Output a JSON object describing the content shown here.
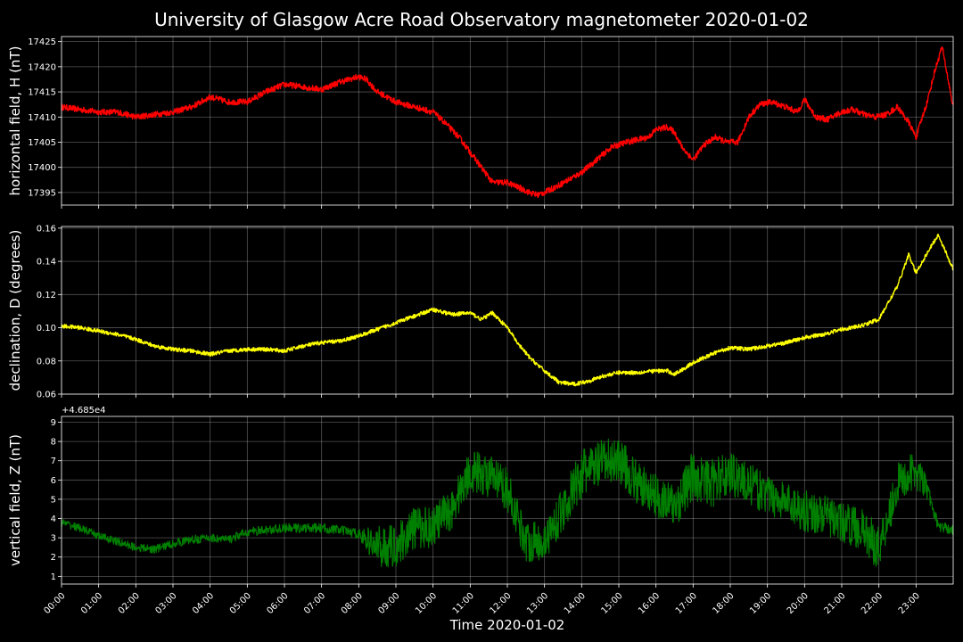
{
  "figure": {
    "title": "University of Glasgow Acre Road Observatory magnetometer 2020-01-02",
    "background": "#000000",
    "text_color": "#ffffff",
    "grid_color": "#ffffff"
  },
  "chart_data": [
    {
      "type": "line",
      "ylabel": "horizontal field, H (nT)",
      "xlabel": "",
      "color": "#ff0000",
      "ylim": [
        17392.5,
        17426
      ],
      "yticks": [
        17395,
        17400,
        17405,
        17410,
        17415,
        17420,
        17425
      ],
      "ytick_labels": [
        "17395",
        "17400",
        "17405",
        "17410",
        "17415",
        "17420",
        "17425"
      ],
      "offset_text": "",
      "noise": 0.6,
      "grid": true,
      "x": [
        0,
        0.5,
        1,
        1.5,
        2,
        2.5,
        3,
        3.5,
        4,
        4.5,
        5,
        5.5,
        6,
        6.5,
        7,
        7.5,
        8,
        8.2,
        8.5,
        9,
        9.5,
        10,
        10.3,
        10.7,
        11,
        11.3,
        11.6,
        12,
        12.3,
        12.6,
        12.8,
        13,
        13.4,
        14,
        14.4,
        14.8,
        15.2,
        15.5,
        15.8,
        16,
        16.3,
        16.5,
        16.7,
        17,
        17.3,
        17.6,
        17.9,
        18.2,
        18.5,
        18.8,
        19.1,
        19.5,
        19.8,
        20,
        20.3,
        20.6,
        21,
        21.3,
        21.6,
        21.9,
        22.2,
        22.5,
        22.8,
        23,
        23.3,
        23.5,
        23.7,
        24
      ],
      "y": [
        17412,
        17411.5,
        17411,
        17411,
        17410,
        17410.5,
        17411,
        17412,
        17414,
        17413,
        17413,
        17415,
        17416.5,
        17416,
        17415.5,
        17417,
        17418,
        17417.5,
        17415,
        17413,
        17412,
        17411,
        17409,
        17406,
        17403,
        17400,
        17397,
        17397,
        17396,
        17395,
        17394.5,
        17395,
        17396.5,
        17399,
        17401.5,
        17404,
        17405,
        17405.5,
        17406,
        17407.5,
        17408,
        17407,
        17404,
        17401.5,
        17404.5,
        17406,
        17405,
        17405,
        17410,
        17412.5,
        17413,
        17412,
        17411,
        17413.5,
        17410,
        17409.5,
        17411,
        17411.5,
        17410.5,
        17410,
        17410.5,
        17412,
        17409,
        17406,
        17413,
        17419,
        17424,
        17412
      ]
    },
    {
      "type": "line",
      "ylabel": "declination, D (degrees)",
      "xlabel": "",
      "color": "#ffff00",
      "ylim": [
        0.06,
        0.161
      ],
      "yticks": [
        0.06,
        0.08,
        0.1,
        0.12,
        0.14,
        0.16
      ],
      "ytick_labels": [
        "0.06",
        "0.08",
        "0.10",
        "0.12",
        "0.14",
        "0.16"
      ],
      "offset_text": "",
      "noise": 0.0012,
      "grid": true,
      "x": [
        0,
        0.5,
        1,
        1.5,
        2,
        2.5,
        3,
        3.5,
        4,
        4.5,
        5,
        5.5,
        6,
        6.5,
        7,
        7.5,
        8,
        8.5,
        9,
        9.5,
        10,
        10.5,
        11,
        11.3,
        11.6,
        12,
        12.3,
        12.6,
        13,
        13.4,
        13.8,
        14.2,
        14.6,
        15,
        15.5,
        16,
        16.3,
        16.5,
        16.8,
        17,
        17.3,
        17.6,
        18,
        18.5,
        19,
        19.5,
        20,
        20.5,
        21,
        21.5,
        22,
        22.2,
        22.5,
        22.8,
        23,
        23.3,
        23.6,
        24
      ],
      "y": [
        0.101,
        0.1,
        0.098,
        0.096,
        0.093,
        0.089,
        0.087,
        0.086,
        0.084,
        0.086,
        0.087,
        0.087,
        0.086,
        0.089,
        0.091,
        0.092,
        0.095,
        0.099,
        0.103,
        0.107,
        0.111,
        0.108,
        0.109,
        0.105,
        0.109,
        0.1,
        0.09,
        0.082,
        0.074,
        0.067,
        0.066,
        0.068,
        0.071,
        0.073,
        0.073,
        0.074,
        0.074,
        0.072,
        0.076,
        0.079,
        0.082,
        0.085,
        0.088,
        0.087,
        0.089,
        0.091,
        0.094,
        0.096,
        0.099,
        0.101,
        0.105,
        0.113,
        0.125,
        0.144,
        0.133,
        0.145,
        0.156,
        0.135
      ]
    },
    {
      "type": "line",
      "ylabel": "vertical field, Z (nT)",
      "xlabel": "Time 2020-01-02",
      "color": "#008000",
      "ylim": [
        0.6,
        9.3
      ],
      "yticks": [
        1,
        2,
        3,
        4,
        5,
        6,
        7,
        8,
        9
      ],
      "ytick_labels": [
        "1",
        "2",
        "3",
        "4",
        "5",
        "6",
        "7",
        "8",
        "9"
      ],
      "offset_text": "+4.685e4",
      "noise": 0.3,
      "amp_x": [
        0,
        8,
        8.5,
        11,
        12,
        13,
        14,
        15,
        16,
        17,
        18,
        19,
        20,
        21,
        22,
        23,
        23.5,
        24
      ],
      "amp": [
        0.2,
        0.25,
        1.1,
        1.1,
        1.1,
        1.0,
        1.3,
        1.2,
        1.1,
        1.3,
        1.2,
        1.0,
        1.1,
        1.0,
        1.2,
        1.0,
        0.3,
        0.25
      ],
      "grid": true,
      "x": [
        0,
        0.5,
        1,
        1.5,
        2,
        2.5,
        3,
        3.5,
        4,
        4.5,
        5,
        5.5,
        6,
        6.5,
        7,
        7.5,
        8,
        8.5,
        9,
        9.5,
        10,
        10.5,
        11,
        11.5,
        12,
        12.5,
        13,
        13.5,
        14,
        14.5,
        15,
        15.5,
        16,
        16.5,
        17,
        17.5,
        18,
        18.5,
        19,
        19.5,
        20,
        20.5,
        21,
        21.5,
        22,
        22.5,
        23,
        23.3,
        23.6,
        24
      ],
      "y": [
        3.8,
        3.5,
        3.1,
        2.8,
        2.5,
        2.4,
        2.7,
        2.9,
        3,
        2.9,
        3.3,
        3.4,
        3.5,
        3.5,
        3.5,
        3.4,
        3.2,
        2.5,
        2.6,
        3.5,
        3.6,
        4.5,
        6.5,
        6.2,
        5.5,
        2.8,
        2.8,
        4.5,
        6.3,
        6.8,
        7.1,
        5.8,
        5.2,
        4.6,
        6.2,
        5.8,
        6.4,
        5.8,
        5.2,
        4.9,
        4.4,
        4.2,
        3.8,
        3.5,
        2.5,
        5.8,
        6.5,
        5.5,
        3.6,
        3.4
      ]
    }
  ],
  "time_axis": {
    "range": [
      0,
      24
    ],
    "ticks": [
      0,
      1,
      2,
      3,
      4,
      5,
      6,
      7,
      8,
      9,
      10,
      11,
      12,
      13,
      14,
      15,
      16,
      17,
      18,
      19,
      20,
      21,
      22,
      23
    ],
    "tick_labels": [
      "00:00",
      "01:00",
      "02:00",
      "03:00",
      "04:00",
      "05:00",
      "06:00",
      "07:00",
      "08:00",
      "09:00",
      "10:00",
      "11:00",
      "12:00",
      "13:00",
      "14:00",
      "15:00",
      "16:00",
      "17:00",
      "18:00",
      "19:00",
      "20:00",
      "21:00",
      "22:00",
      "23:00"
    ]
  }
}
